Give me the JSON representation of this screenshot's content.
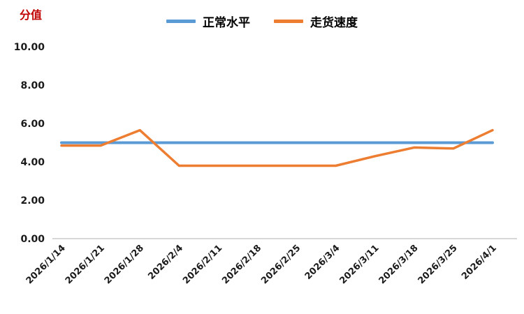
{
  "chart_data": {
    "type": "line",
    "title": "",
    "ylabel": "分值",
    "xlabel": "",
    "categories": [
      "2026/1/14",
      "2026/1/21",
      "2026/1/28",
      "2026/2/4",
      "2026/2/11",
      "2026/2/18",
      "2026/2/25",
      "2026/3/4",
      "2026/3/11",
      "2026/3/18",
      "2026/3/25",
      "2026/4/1"
    ],
    "series": [
      {
        "name": "正常水平",
        "color": "#5B9BD5",
        "values": [
          5.0,
          5.0,
          5.0,
          5.0,
          5.0,
          5.0,
          5.0,
          5.0,
          5.0,
          5.0,
          5.0,
          5.0
        ]
      },
      {
        "name": "走货速度",
        "color": "#ED7D31",
        "values": [
          4.85,
          4.85,
          5.65,
          3.8,
          3.8,
          3.8,
          3.8,
          3.8,
          4.3,
          4.75,
          4.7,
          5.65
        ]
      }
    ],
    "ylim": [
      0,
      10
    ],
    "ytick_step": 2,
    "ytick_labels": [
      "0.00",
      "2.00",
      "4.00",
      "6.00",
      "8.00",
      "10.00"
    ],
    "grid": false,
    "legend_position": "top",
    "x_label_rotation": -45,
    "colors": {
      "ylabel_color": "#C00000",
      "axis_line_color": "#BFBFBF",
      "tick_label_color": "#1a1a1a"
    }
  }
}
